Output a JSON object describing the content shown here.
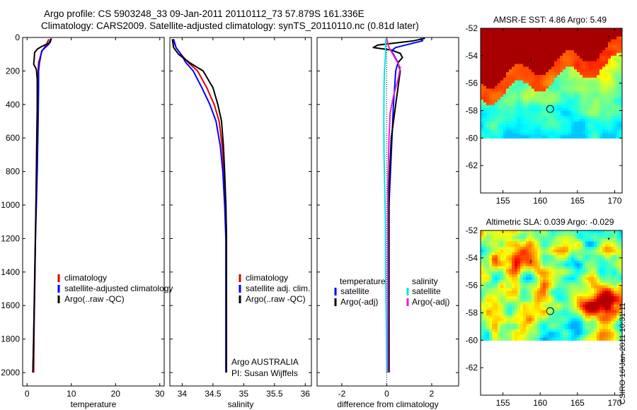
{
  "header": {
    "title_line1": "Argo profile: CS 5903248_33 09-Jan-2011 20110112_73 57.879S 161.336E",
    "title_line2": "Climatology: CARS2009. Satellite-adjusted climatology: synTS_20110110.nc (0.81d later)"
  },
  "footer": {
    "stamp": "CSIRO 16-Jan-2011 10:31:11"
  },
  "colors": {
    "red": "#dd0000",
    "blue": "#0000ff",
    "black": "#000000",
    "cyan": "#00e5e5",
    "magenta": "#e020e0"
  },
  "chart_data": [
    {
      "type": "line",
      "xlabel": "temperature",
      "xlim": [
        -1,
        31
      ],
      "xticks": [
        0,
        10,
        20,
        30
      ],
      "ylim": [
        2080,
        0
      ],
      "yticks": [
        0,
        200,
        400,
        600,
        800,
        1000,
        1200,
        1400,
        1600,
        1800,
        2000
      ],
      "series": [
        {
          "name": "climatology",
          "color": "#dd0000",
          "points": [
            [
              4.9,
              10
            ],
            [
              4.4,
              40
            ],
            [
              3.4,
              80
            ],
            [
              2.6,
              150
            ],
            [
              2.5,
              200
            ],
            [
              2.4,
              300
            ],
            [
              2.3,
              400
            ],
            [
              2.2,
              600
            ],
            [
              2.1,
              800
            ],
            [
              2.0,
              1000
            ],
            [
              1.9,
              1200
            ],
            [
              1.8,
              1400
            ],
            [
              1.6,
              1700
            ],
            [
              1.5,
              2000
            ]
          ]
        },
        {
          "name": "satellite-adjusted climatology",
          "color": "#0000ff",
          "points": [
            [
              5.3,
              10
            ],
            [
              4.9,
              40
            ],
            [
              3.3,
              80
            ],
            [
              2.8,
              150
            ],
            [
              2.6,
              200
            ],
            [
              2.6,
              300
            ],
            [
              2.5,
              500
            ],
            [
              2.3,
              800
            ],
            [
              2.1,
              1000
            ],
            [
              1.9,
              1200
            ],
            [
              1.7,
              1500
            ],
            [
              1.5,
              1800
            ],
            [
              1.3,
              2000
            ]
          ]
        },
        {
          "name": "Argo(..raw -QC)",
          "color": "#000000",
          "points": [
            [
              5.5,
              5
            ],
            [
              5.2,
              30
            ],
            [
              3.2,
              55
            ],
            [
              2.3,
              70
            ],
            [
              1.7,
              90
            ],
            [
              1.6,
              130
            ],
            [
              1.5,
              160
            ],
            [
              2.1,
              190
            ],
            [
              2.3,
              250
            ],
            [
              2.3,
              350
            ],
            [
              2.3,
              450
            ],
            [
              2.2,
              600
            ],
            [
              2.1,
              800
            ],
            [
              2.0,
              1000
            ],
            [
              1.8,
              1300
            ],
            [
              1.6,
              1600
            ],
            [
              1.4,
              1900
            ],
            [
              1.3,
              2000
            ]
          ]
        }
      ]
    },
    {
      "type": "line",
      "xlabel": "salinity",
      "xlim": [
        33.8,
        36.1
      ],
      "xticks": [
        34,
        34.5,
        35,
        35.5,
        36
      ],
      "ylim": [
        2080,
        0
      ],
      "series": [
        {
          "name": "climatology",
          "color": "#dd0000",
          "points": [
            [
              33.85,
              10
            ],
            [
              33.9,
              60
            ],
            [
              33.98,
              100
            ],
            [
              34.1,
              150
            ],
            [
              34.25,
              200
            ],
            [
              34.4,
              300
            ],
            [
              34.52,
              400
            ],
            [
              34.6,
              500
            ],
            [
              34.65,
              650
            ],
            [
              34.68,
              800
            ],
            [
              34.71,
              1000
            ],
            [
              34.72,
              1200
            ],
            [
              34.72,
              1400
            ],
            [
              34.72,
              2000
            ]
          ]
        },
        {
          "name": "satellite adj. clim.",
          "color": "#0000ff",
          "points": [
            [
              33.86,
              10
            ],
            [
              33.9,
              60
            ],
            [
              33.98,
              100
            ],
            [
              34.06,
              150
            ],
            [
              34.18,
              200
            ],
            [
              34.32,
              300
            ],
            [
              34.45,
              400
            ],
            [
              34.55,
              500
            ],
            [
              34.62,
              650
            ],
            [
              34.66,
              800
            ],
            [
              34.69,
              1000
            ],
            [
              34.71,
              1200
            ],
            [
              34.71,
              1400
            ],
            [
              34.71,
              2000
            ]
          ]
        },
        {
          "name": "Argo(..raw -QC)",
          "color": "#000000",
          "points": [
            [
              33.84,
              10
            ],
            [
              33.86,
              60
            ],
            [
              33.94,
              100
            ],
            [
              34.12,
              150
            ],
            [
              34.34,
              200
            ],
            [
              34.5,
              300
            ],
            [
              34.58,
              400
            ],
            [
              34.64,
              500
            ],
            [
              34.67,
              650
            ],
            [
              34.69,
              800
            ],
            [
              34.71,
              1000
            ],
            [
              34.72,
              1200
            ],
            [
              34.72,
              1400
            ],
            [
              34.72,
              2000
            ]
          ]
        }
      ],
      "annotation": [
        "Argo AUSTRALIA",
        "PI: Susan Wijffels"
      ]
    },
    {
      "type": "line",
      "xlabel": "difference from climatology",
      "xlim": [
        -3.1,
        3.2
      ],
      "xticks": [
        -2,
        0,
        2
      ],
      "ylim": [
        2080,
        0
      ],
      "legend_headers": [
        "temperature",
        "salinity"
      ],
      "series": [
        {
          "name": "satellite",
          "group": "temperature",
          "color": "#0000ff",
          "points": [
            [
              1.5,
              5
            ],
            [
              1.6,
              20
            ],
            [
              0.4,
              60
            ],
            [
              0.2,
              80
            ],
            [
              0.3,
              100
            ],
            [
              0.5,
              150
            ],
            [
              0.4,
              200
            ],
            [
              0.3,
              400
            ],
            [
              0.2,
              700
            ],
            [
              0.1,
              1000
            ],
            [
              0.1,
              1400
            ],
            [
              0.1,
              2000
            ]
          ]
        },
        {
          "name": "Argo(-adj)",
          "group": "temperature",
          "color": "#000000",
          "points": [
            [
              1.7,
              5
            ],
            [
              1.2,
              20
            ],
            [
              -0.4,
              45
            ],
            [
              -0.6,
              60
            ],
            [
              0.2,
              75
            ],
            [
              0.6,
              95
            ],
            [
              0.7,
              120
            ],
            [
              0.5,
              150
            ],
            [
              0.6,
              200
            ],
            [
              0.5,
              300
            ],
            [
              0.4,
              400
            ],
            [
              0.2,
              600
            ],
            [
              0.1,
              900
            ],
            [
              0.1,
              1400
            ],
            [
              0.1,
              2000
            ]
          ]
        },
        {
          "name": "satellite",
          "group": "salinity",
          "color": "#00e5e5",
          "points": [
            [
              -0.05,
              10
            ],
            [
              -0.05,
              100
            ],
            [
              -0.1,
              200
            ],
            [
              -0.12,
              300
            ],
            [
              -0.13,
              500
            ],
            [
              -0.12,
              700
            ],
            [
              -0.09,
              900
            ],
            [
              -0.06,
              1100
            ],
            [
              -0.05,
              1400
            ],
            [
              -0.02,
              1700
            ],
            [
              0,
              2000
            ]
          ]
        },
        {
          "name": "Argo(-adj)",
          "group": "salinity",
          "color": "#e020e0",
          "points": [
            [
              0,
              10
            ],
            [
              0.1,
              60
            ],
            [
              0.4,
              130
            ],
            [
              0.6,
              180
            ],
            [
              0.5,
              250
            ],
            [
              0.3,
              350
            ],
            [
              0.15,
              450
            ],
            [
              0.1,
              600
            ],
            [
              0.05,
              900
            ],
            [
              0.05,
              1400
            ],
            [
              0.05,
              2000
            ]
          ]
        }
      ]
    },
    {
      "type": "heatmap",
      "title": "AMSR-E SST: 4.86 Argo: 5.49",
      "xlim": [
        152,
        171
      ],
      "ylim": [
        -64,
        -52
      ],
      "xticks": [
        155,
        160,
        165,
        170
      ],
      "yticks": [
        -52,
        -54,
        -56,
        -58,
        -60,
        -62
      ],
      "data_extent_lat": [
        -60,
        -52
      ],
      "float_position": [
        161.336,
        -57.879
      ]
    },
    {
      "type": "heatmap",
      "title": "Altimetric SLA: 0.039 Argo: -0.029",
      "xlim": [
        152,
        171
      ],
      "ylim": [
        -64,
        -52
      ],
      "xticks": [
        155,
        160,
        165,
        170
      ],
      "yticks": [
        -52,
        -54,
        -56,
        -58,
        -60,
        -62
      ],
      "data_extent_lat": [
        -60,
        -52
      ],
      "float_position": [
        161.336,
        -57.879
      ]
    }
  ]
}
